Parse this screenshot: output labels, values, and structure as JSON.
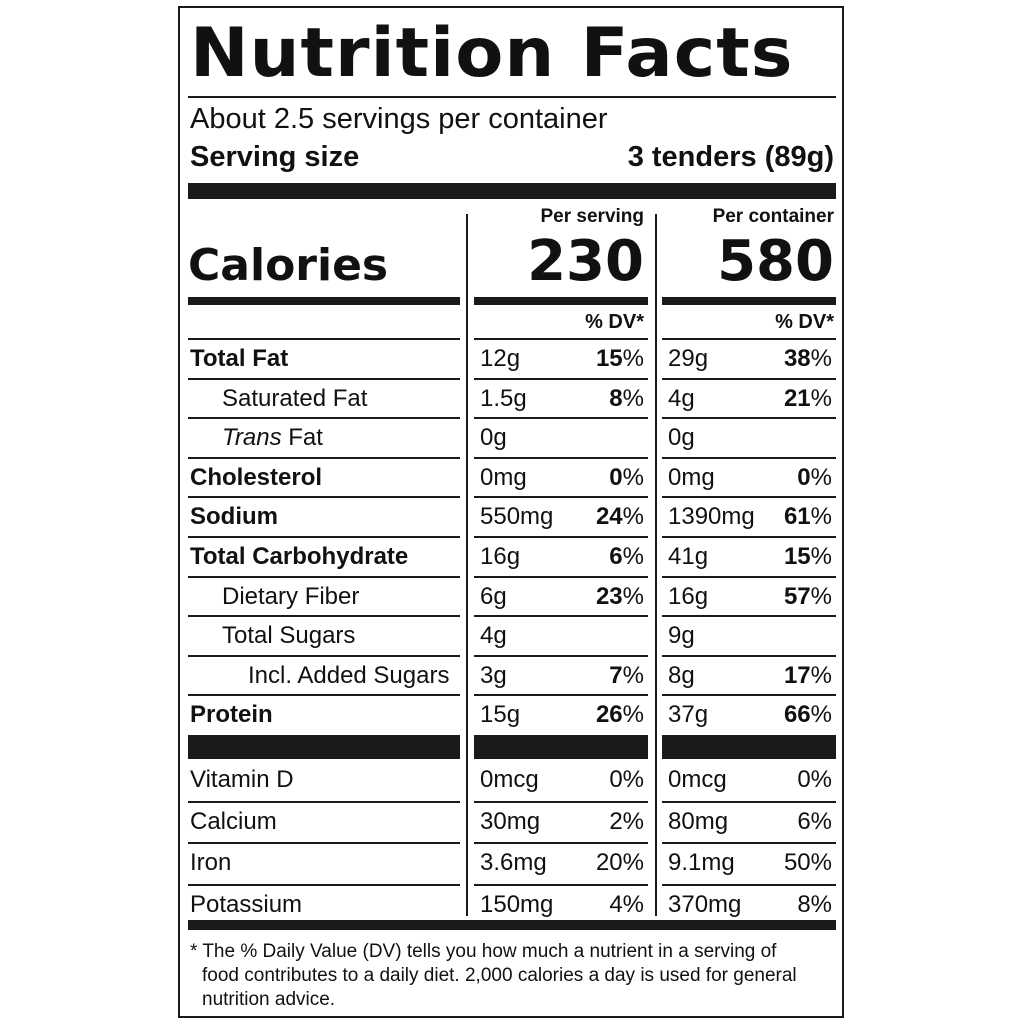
{
  "title": "Nutrition Facts",
  "servings_per_container": "About 2.5 servings per container",
  "serving_size_label": "Serving size",
  "serving_size_value": "3 tenders (89g)",
  "per_serving_label": "Per serving",
  "per_container_label": "Per container",
  "calories_label": "Calories",
  "calories_serving": "230",
  "calories_container": "580",
  "dv_header": "% DV*",
  "nutrients": [
    {
      "name": "Total Fat",
      "s_amt": "12g",
      "s_pct": "15",
      "c_amt": "29g",
      "c_pct": "38"
    },
    {
      "name": "Saturated Fat",
      "s_amt": "1.5g",
      "s_pct": "8",
      "c_amt": "4g",
      "c_pct": "21"
    },
    {
      "name_italic": "Trans",
      "name": " Fat",
      "s_amt": "0g",
      "s_pct": "",
      "c_amt": "0g",
      "c_pct": ""
    },
    {
      "name": "Cholesterol",
      "s_amt": "0mg",
      "s_pct": "0",
      "c_amt": "0mg",
      "c_pct": "0"
    },
    {
      "name": "Sodium",
      "s_amt": "550mg",
      "s_pct": "24",
      "c_amt": "1390mg",
      "c_pct": "61"
    },
    {
      "name": "Total Carbohydrate",
      "s_amt": "16g",
      "s_pct": "6",
      "c_amt": "41g",
      "c_pct": "15"
    },
    {
      "name": "Dietary Fiber",
      "s_amt": "6g",
      "s_pct": "23",
      "c_amt": "16g",
      "c_pct": "57"
    },
    {
      "name": "Total Sugars",
      "s_amt": "4g",
      "s_pct": "",
      "c_amt": "9g",
      "c_pct": ""
    },
    {
      "name": "Incl. Added Sugars",
      "s_amt": "3g",
      "s_pct": "7",
      "c_amt": "8g",
      "c_pct": "17"
    },
    {
      "name": "Protein",
      "s_amt": "15g",
      "s_pct": "26",
      "c_amt": "37g",
      "c_pct": "66"
    }
  ],
  "percent_sign": "%",
  "vitamins": [
    {
      "name": "Vitamin D",
      "s_amt": "0mcg",
      "s_pct": "0%",
      "c_amt": "0mcg",
      "c_pct": "0%"
    },
    {
      "name": "Calcium",
      "s_amt": "30mg",
      "s_pct": "2%",
      "c_amt": "80mg",
      "c_pct": "6%"
    },
    {
      "name": "Iron",
      "s_amt": "3.6mg",
      "s_pct": "20%",
      "c_amt": "9.1mg",
      "c_pct": "50%"
    },
    {
      "name": "Potassium",
      "s_amt": "150mg",
      "s_pct": "4%",
      "c_amt": "370mg",
      "c_pct": "8%"
    }
  ],
  "footnote": {
    "line1": "* The % Daily Value (DV) tells you how much a nutrient in a serving of",
    "line2": "food contributes to a daily diet. 2,000 calories a day is used for general",
    "line3": "nutrition advice."
  }
}
